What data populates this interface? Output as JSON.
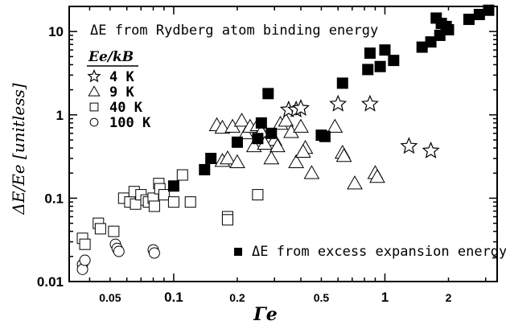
{
  "chart_data": {
    "type": "scatter",
    "title": "",
    "xlabel": "Γe",
    "ylabel": "ΔE/Ee [unitless]",
    "x_scale": "log",
    "y_scale": "log",
    "xlim": [
      0.032,
      3.4
    ],
    "ylim": [
      0.01,
      20
    ],
    "x_ticks": [
      {
        "value": 0.05,
        "label": "0.05"
      },
      {
        "value": 0.1,
        "label": "0.1"
      },
      {
        "value": 0.2,
        "label": "0.2"
      },
      {
        "value": 0.5,
        "label": "0.5"
      },
      {
        "value": 1,
        "label": "1"
      },
      {
        "value": 2,
        "label": "2"
      }
    ],
    "y_ticks": [
      {
        "value": 0.01,
        "label": "0.01"
      },
      {
        "value": 0.1,
        "label": "0.1"
      },
      {
        "value": 1,
        "label": "1"
      },
      {
        "value": 10,
        "label": "10"
      }
    ],
    "grid": false,
    "annotations": {
      "rydberg": "ΔE from Rydberg atom binding energy",
      "expansion": "ΔE from excess expansion energy",
      "legend_title": "Ee/kB"
    },
    "legend": [
      {
        "marker": "star",
        "label": "4 K"
      },
      {
        "marker": "triangle",
        "label": "9 K"
      },
      {
        "marker": "square",
        "label": "40 K"
      },
      {
        "marker": "circle",
        "label": "100 K"
      }
    ],
    "series": [
      {
        "name": "4 K",
        "marker": "star",
        "points": [
          [
            0.35,
            1.15
          ],
          [
            0.38,
            1.15
          ],
          [
            0.4,
            1.2
          ],
          [
            0.6,
            1.35
          ],
          [
            0.85,
            1.35
          ],
          [
            1.3,
            0.42
          ],
          [
            1.65,
            0.37
          ]
        ]
      },
      {
        "name": "9 K",
        "marker": "triangle",
        "points": [
          [
            0.16,
            0.75
          ],
          [
            0.17,
            0.7
          ],
          [
            0.19,
            0.72
          ],
          [
            0.21,
            0.85
          ],
          [
            0.22,
            0.6
          ],
          [
            0.23,
            0.72
          ],
          [
            0.25,
            0.75
          ],
          [
            0.26,
            0.62
          ],
          [
            0.28,
            0.5
          ],
          [
            0.3,
            0.5
          ],
          [
            0.24,
            0.42
          ],
          [
            0.27,
            0.45
          ],
          [
            0.31,
            0.42
          ],
          [
            0.32,
            0.78
          ],
          [
            0.34,
            0.85
          ],
          [
            0.36,
            0.62
          ],
          [
            0.4,
            0.72
          ],
          [
            0.29,
            0.3
          ],
          [
            0.38,
            0.27
          ],
          [
            0.42,
            0.4
          ],
          [
            0.41,
            0.36
          ],
          [
            0.45,
            0.2
          ],
          [
            0.58,
            0.72
          ],
          [
            0.63,
            0.35
          ],
          [
            0.64,
            0.32
          ],
          [
            0.72,
            0.15
          ],
          [
            0.9,
            0.2
          ],
          [
            0.92,
            0.18
          ],
          [
            0.17,
            0.28
          ],
          [
            0.18,
            0.3
          ],
          [
            0.2,
            0.27
          ]
        ]
      },
      {
        "name": "40 K",
        "marker": "square",
        "points": [
          [
            0.037,
            0.033
          ],
          [
            0.038,
            0.028
          ],
          [
            0.044,
            0.05
          ],
          [
            0.045,
            0.043
          ],
          [
            0.052,
            0.04
          ],
          [
            0.058,
            0.1
          ],
          [
            0.062,
            0.09
          ],
          [
            0.065,
            0.12
          ],
          [
            0.066,
            0.085
          ],
          [
            0.07,
            0.11
          ],
          [
            0.074,
            0.095
          ],
          [
            0.076,
            0.09
          ],
          [
            0.08,
            0.1
          ],
          [
            0.081,
            0.08
          ],
          [
            0.085,
            0.15
          ],
          [
            0.086,
            0.13
          ],
          [
            0.09,
            0.11
          ],
          [
            0.1,
            0.09
          ],
          [
            0.11,
            0.19
          ],
          [
            0.12,
            0.09
          ],
          [
            0.18,
            0.06
          ],
          [
            0.18,
            0.055
          ],
          [
            0.25,
            0.11
          ]
        ]
      },
      {
        "name": "100 K",
        "marker": "circle",
        "points": [
          [
            0.037,
            0.016
          ],
          [
            0.037,
            0.014
          ],
          [
            0.038,
            0.018
          ],
          [
            0.053,
            0.028
          ],
          [
            0.054,
            0.025
          ],
          [
            0.055,
            0.023
          ],
          [
            0.08,
            0.024
          ],
          [
            0.081,
            0.022
          ]
        ]
      },
      {
        "name": "excess expansion energy",
        "marker": "filled-square",
        "points": [
          [
            0.1,
            0.14
          ],
          [
            0.14,
            0.22
          ],
          [
            0.15,
            0.3
          ],
          [
            0.2,
            0.47
          ],
          [
            0.25,
            0.52
          ],
          [
            0.26,
            0.8
          ],
          [
            0.28,
            1.8
          ],
          [
            0.29,
            0.6
          ],
          [
            0.5,
            0.57
          ],
          [
            0.52,
            0.55
          ],
          [
            0.63,
            2.4
          ],
          [
            0.83,
            3.5
          ],
          [
            0.85,
            5.5
          ],
          [
            0.95,
            3.8
          ],
          [
            1.0,
            6.0
          ],
          [
            1.1,
            4.5
          ],
          [
            1.5,
            6.5
          ],
          [
            1.65,
            7.5
          ],
          [
            1.75,
            14.5
          ],
          [
            1.82,
            9.0
          ],
          [
            1.85,
            12.5
          ],
          [
            1.95,
            11.5
          ],
          [
            2.0,
            10.5
          ],
          [
            2.5,
            14.0
          ],
          [
            2.8,
            16.0
          ],
          [
            3.1,
            18.0
          ]
        ]
      }
    ]
  }
}
